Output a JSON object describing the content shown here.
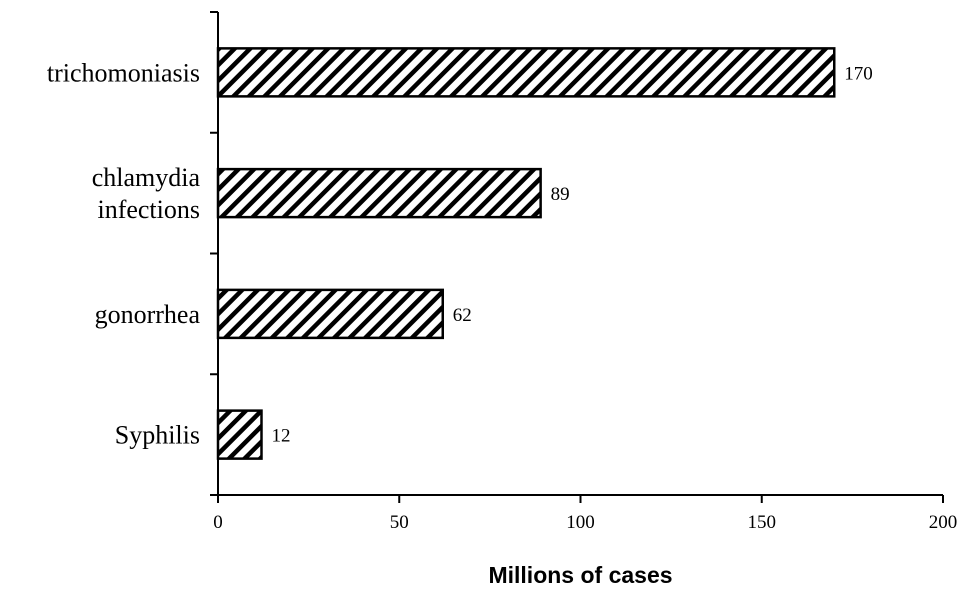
{
  "chart_data": {
    "type": "bar",
    "orientation": "horizontal",
    "categories": [
      "trichomoniasis",
      "chlamydia infections",
      "gonorrhea",
      "Syphilis"
    ],
    "category_lines": [
      [
        "trichomoniasis"
      ],
      [
        "chlamydia",
        "infections"
      ],
      [
        "gonorrhea"
      ],
      [
        "Syphilis"
      ]
    ],
    "values": [
      170,
      89,
      62,
      12
    ],
    "data_labels": [
      "170",
      "89",
      "62",
      "12"
    ],
    "xlabel": "Millions of cases",
    "ylabel": "",
    "title": "",
    "xlim": [
      0,
      200
    ],
    "xticks": [
      0,
      50,
      100,
      150,
      200
    ],
    "xtick_labels": [
      "0",
      "50",
      "100",
      "150",
      "200"
    ],
    "grid": false,
    "legend": "none",
    "bar_fill": "diagonal-hatch",
    "colors": {
      "bar_stroke": "#000000",
      "hatch": "#000000",
      "background": "#ffffff",
      "axis": "#000000"
    }
  }
}
